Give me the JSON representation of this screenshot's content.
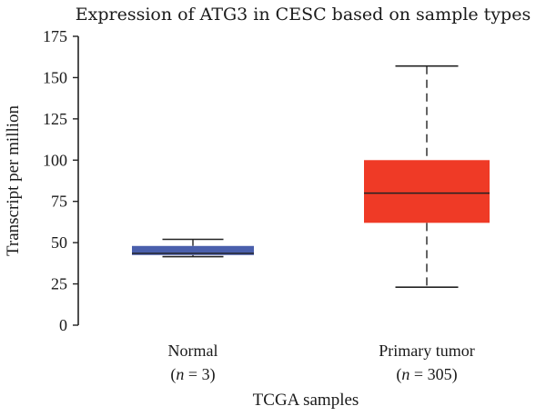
{
  "chart_data": {
    "type": "box",
    "title": "Expression of ATG3 in CESC based on sample types",
    "xlabel": "TCGA samples",
    "ylabel": "Transcript per million",
    "ylim": [
      0,
      175
    ],
    "yticks": [
      0,
      25,
      50,
      75,
      100,
      125,
      150,
      175
    ],
    "grid": false,
    "categories": [
      {
        "label": "Normal",
        "n_prefix": "(",
        "n_var": "n",
        "n_rest": " = 3)",
        "color": "#4a5fac",
        "min": 41.5,
        "q1": 42.5,
        "median": 43.5,
        "q3": 48,
        "max": 52
      },
      {
        "label": "Primary tumor",
        "n_prefix": "(",
        "n_var": "n",
        "n_rest": " = 305)",
        "color": "#ef3a26",
        "min": 23,
        "q1": 62,
        "median": 80,
        "q3": 100,
        "max": 157
      }
    ]
  }
}
